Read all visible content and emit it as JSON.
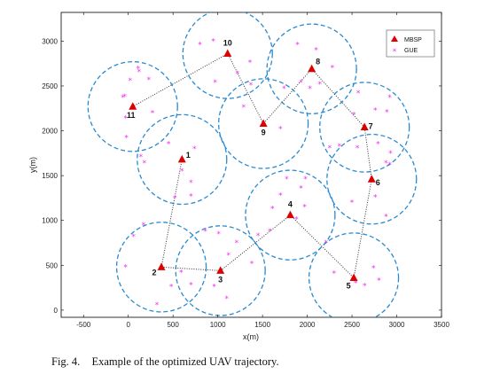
{
  "caption": {
    "label": "Fig. 4.",
    "text": "Example of the optimized UAV trajectory."
  },
  "chart_data": {
    "type": "scatter",
    "xlabel": "x(m)",
    "ylabel": "y(m)",
    "xlim": [
      -750,
      3500
    ],
    "ylim": [
      -80,
      3320
    ],
    "xticks": [
      -500,
      0,
      500,
      1000,
      1500,
      2000,
      2500,
      3000,
      3500
    ],
    "yticks": [
      0,
      500,
      1000,
      1500,
      2000,
      2500,
      3000
    ],
    "coverage_radius": 500,
    "colors": {
      "mbsp": "#dd0000",
      "gue": "#ee33ee",
      "coverage": "#2a8ad0",
      "path": "#333333"
    },
    "legend": {
      "position": "top-right",
      "entries": [
        {
          "label": "MBSP",
          "marker": "triangle"
        },
        {
          "label": "GUE",
          "marker": "star"
        }
      ]
    },
    "mbsp": [
      {
        "label": "1",
        "x": 600,
        "y": 1680
      },
      {
        "label": "2",
        "x": 370,
        "y": 480
      },
      {
        "label": "3",
        "x": 1030,
        "y": 440
      },
      {
        "label": "4",
        "x": 1810,
        "y": 1060
      },
      {
        "label": "5",
        "x": 2520,
        "y": 360
      },
      {
        "label": "6",
        "x": 2720,
        "y": 1460
      },
      {
        "label": "7",
        "x": 2640,
        "y": 2040
      },
      {
        "label": "8",
        "x": 2050,
        "y": 2690
      },
      {
        "label": "9",
        "x": 1510,
        "y": 2080
      },
      {
        "label": "10",
        "x": 1110,
        "y": 2860
      },
      {
        "label": "11",
        "x": 50,
        "y": 2270
      }
    ],
    "trajectory_order": [
      "1",
      "2",
      "3",
      "4",
      "5",
      "6",
      "7",
      "8",
      "9",
      "10",
      "11"
    ],
    "gue": [
      [
        450,
        1850
      ],
      [
        600,
        1550
      ],
      [
        700,
        1420
      ],
      [
        520,
        1250
      ],
      [
        740,
        1800
      ],
      [
        180,
        1640
      ],
      [
        140,
        1710
      ],
      [
        700,
        1270
      ],
      [
        60,
        820
      ],
      [
        -30,
        480
      ],
      [
        590,
        420
      ],
      [
        700,
        280
      ],
      [
        480,
        260
      ],
      [
        320,
        60
      ],
      [
        170,
        950
      ],
      [
        1010,
        850
      ],
      [
        1120,
        610
      ],
      [
        1210,
        750
      ],
      [
        960,
        260
      ],
      [
        860,
        880
      ],
      [
        1100,
        130
      ],
      [
        1380,
        520
      ],
      [
        1700,
        1280
      ],
      [
        1930,
        1360
      ],
      [
        1970,
        1150
      ],
      [
        1880,
        1010
      ],
      [
        1580,
        880
      ],
      [
        1450,
        830
      ],
      [
        1770,
        1460
      ],
      [
        1980,
        1460
      ],
      [
        1610,
        1130
      ],
      [
        2210,
        750
      ],
      [
        2540,
        300
      ],
      [
        2640,
        270
      ],
      [
        2800,
        330
      ],
      [
        2740,
        470
      ],
      [
        2300,
        410
      ],
      [
        2880,
        1040
      ],
      [
        2500,
        1200
      ],
      [
        2760,
        1260
      ],
      [
        2880,
        1640
      ],
      [
        2920,
        1620
      ],
      [
        2930,
        1750
      ],
      [
        2790,
        1850
      ],
      [
        2560,
        1810
      ],
      [
        2360,
        1830
      ],
      [
        2250,
        1810
      ],
      [
        2890,
        2210
      ],
      [
        2760,
        2230
      ],
      [
        2520,
        2180
      ],
      [
        2570,
        2420
      ],
      [
        2920,
        2370
      ],
      [
        2100,
        2900
      ],
      [
        1890,
        2960
      ],
      [
        2030,
        2470
      ],
      [
        2140,
        2520
      ],
      [
        1930,
        2540
      ],
      [
        2280,
        2700
      ],
      [
        1740,
        2470
      ],
      [
        1370,
        2510
      ],
      [
        1290,
        2260
      ],
      [
        1700,
        2020
      ],
      [
        1220,
        2640
      ],
      [
        800,
        2960
      ],
      [
        970,
        2540
      ],
      [
        1360,
        2760
      ],
      [
        950,
        3000
      ],
      [
        -60,
        2370
      ],
      [
        -40,
        2380
      ],
      [
        120,
        2660
      ],
      [
        110,
        2690
      ],
      [
        20,
        2560
      ],
      [
        -30,
        2140
      ],
      [
        230,
        2570
      ],
      [
        270,
        2200
      ],
      [
        -20,
        1920
      ]
    ]
  }
}
